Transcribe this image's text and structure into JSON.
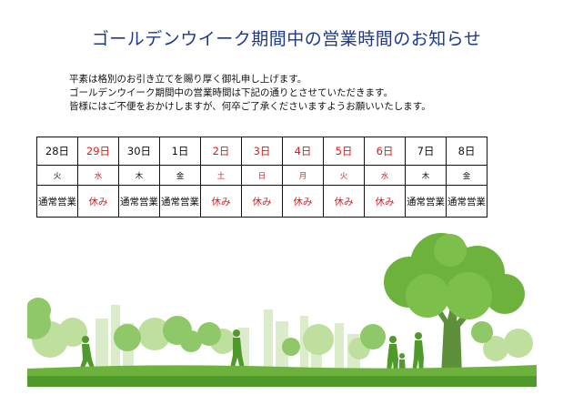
{
  "title": "ゴールデンウイーク期間中の営業時間のお知らせ",
  "intro": [
    "平素は格別のお引き立てを賜り厚く御礼申し上げます。",
    "ゴールデンウイーク期間中の営業時間は下記の通りとさせていただきます。",
    "皆様にはご不便をおかけしますが、何卒ご了承くださいますようお願いいたします。"
  ],
  "schedule": [
    {
      "date": "28日",
      "dow": "火",
      "status": "通常営業"
    },
    {
      "date": "29日",
      "dow": "水",
      "status": "休み"
    },
    {
      "date": "30日",
      "dow": "木",
      "status": "通常営業"
    },
    {
      "date": "1日",
      "dow": "金",
      "status": "通常営業"
    },
    {
      "date": "2日",
      "dow": "土",
      "status": "休み"
    },
    {
      "date": "3日",
      "dow": "日",
      "status": "休み"
    },
    {
      "date": "4日",
      "dow": "月",
      "status": "休み"
    },
    {
      "date": "5日",
      "dow": "火",
      "status": "休み"
    },
    {
      "date": "6日",
      "dow": "水",
      "status": "休み"
    },
    {
      "date": "7日",
      "dow": "木",
      "status": "通常営業"
    },
    {
      "date": "8日",
      "dow": "金",
      "status": "通常営業"
    }
  ],
  "colors": {
    "title": "#1d3a8a",
    "holiday": "#d81e1e",
    "green_dark": "#4f9a2a",
    "green_light": "#a9d483"
  }
}
